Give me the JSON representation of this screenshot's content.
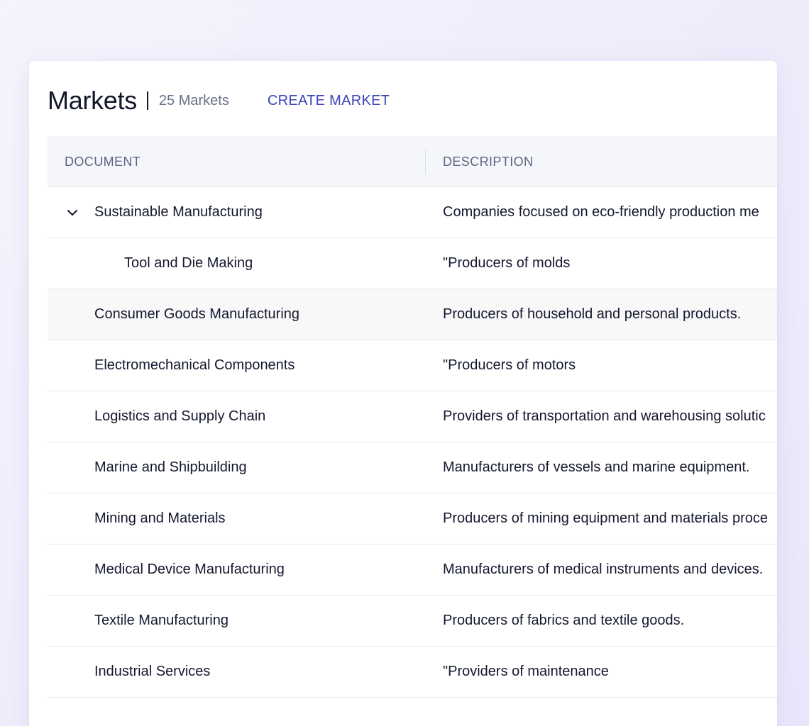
{
  "header": {
    "title": "Markets",
    "count": "25 Markets",
    "create_label": "CREATE MARKET"
  },
  "table": {
    "columns": [
      "DOCUMENT",
      "DESCRIPTION"
    ],
    "rows": [
      {
        "name": "Sustainable Manufacturing",
        "description": "Companies focused on eco-friendly production me"
      },
      {
        "name": "Tool and Die Making",
        "description": "\"Producers of molds"
      },
      {
        "name": "Consumer Goods Manufacturing",
        "description": "Producers of household and personal products."
      },
      {
        "name": "Electromechanical Components",
        "description": "\"Producers of motors"
      },
      {
        "name": "Logistics and Supply Chain",
        "description": "Providers of transportation and warehousing solutic"
      },
      {
        "name": "Marine and Shipbuilding",
        "description": "Manufacturers of vessels and marine equipment."
      },
      {
        "name": "Mining and Materials",
        "description": "Producers of mining equipment and materials proce"
      },
      {
        "name": "Medical Device Manufacturing",
        "description": "Manufacturers of medical instruments and devices."
      },
      {
        "name": "Textile Manufacturing",
        "description": "Producers of fabrics and textile goods."
      },
      {
        "name": "Industrial Services",
        "description": "\"Providers of maintenance"
      }
    ]
  },
  "icons": {
    "expand": "chevron-down-icon"
  },
  "colors": {
    "accent": "#3b44b8",
    "header_bg": "#f4f6fa",
    "highlight_row": "#f8f8f9"
  }
}
